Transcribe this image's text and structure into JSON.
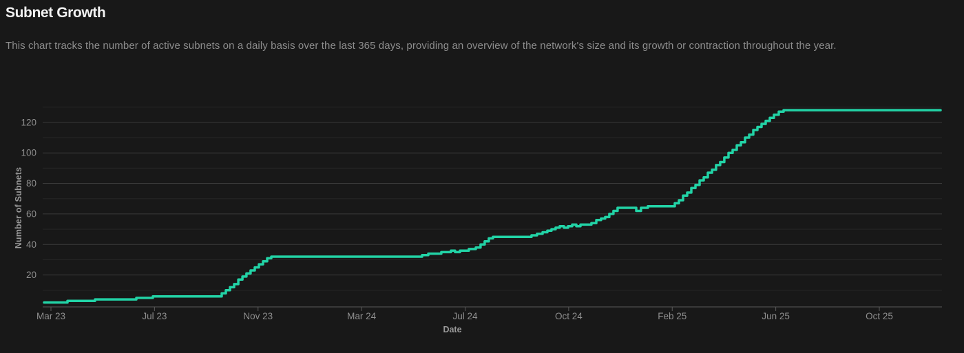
{
  "header": {
    "title": "Subnet Growth",
    "subtitle": "This chart tracks the number of active subnets on a daily basis over the last 365 days, providing an overview of the network's size and its growth or contraction throughout the year."
  },
  "chart_data": {
    "type": "line",
    "title": "Subnet Growth",
    "xlabel": "Date",
    "ylabel": "Number of Subnets",
    "interpolation": "step-after",
    "x_tick_labels": [
      "Mar 23",
      "Jul 23",
      "Nov 23",
      "Mar 24",
      "Jul 24",
      "Oct 24",
      "Feb 25",
      "Jun 25",
      "Oct 25"
    ],
    "y_tick_labels": [
      20,
      40,
      60,
      80,
      100,
      120
    ],
    "y_gridline_step": 10,
    "ylim": [
      0,
      140
    ],
    "grid": true,
    "legend": false,
    "colors": {
      "line": "#22d3a6",
      "background": "#181818",
      "grid_major": "#3a3a3a",
      "grid_minor": "#262626",
      "axis": "#5a5a5a",
      "tick_label": "#8f8f8f"
    },
    "series": [
      {
        "name": "Active Subnets",
        "summary": "Starts near 2 subnets in Feb 2023, steps up to 6 by Jul 2023, climbs steeply in Oct-Nov 2023 to 32, holds 32 until May 2024, rises in stairs to 45 by Aug 2024, to 53 by Oct 2024, to 64-65 by Dec 2024, then climbs steadily Feb-Jun 2025 to 128 and stays flat at 128 through the end.",
        "points": [
          [
            0.0015,
            2
          ],
          [
            0.0276,
            3
          ],
          [
            0.0582,
            4
          ],
          [
            0.1041,
            5
          ],
          [
            0.1225,
            6
          ],
          [
            0.196,
            6
          ],
          [
            0.1991,
            8
          ],
          [
            0.2037,
            10
          ],
          [
            0.2083,
            12
          ],
          [
            0.2129,
            14
          ],
          [
            0.2175,
            17
          ],
          [
            0.2221,
            19
          ],
          [
            0.2266,
            21
          ],
          [
            0.2312,
            23
          ],
          [
            0.2358,
            25
          ],
          [
            0.2404,
            27
          ],
          [
            0.245,
            29
          ],
          [
            0.2496,
            31
          ],
          [
            0.2542,
            32
          ],
          [
            0.4165,
            32
          ],
          [
            0.4219,
            33
          ],
          [
            0.4288,
            34
          ],
          [
            0.4433,
            35
          ],
          [
            0.454,
            36
          ],
          [
            0.4586,
            35
          ],
          [
            0.464,
            36
          ],
          [
            0.4739,
            37
          ],
          [
            0.4816,
            38
          ],
          [
            0.4869,
            40
          ],
          [
            0.4915,
            42
          ],
          [
            0.4961,
            44
          ],
          [
            0.5007,
            45
          ],
          [
            0.5382,
            45
          ],
          [
            0.5436,
            46
          ],
          [
            0.5497,
            47
          ],
          [
            0.5559,
            48
          ],
          [
            0.5612,
            49
          ],
          [
            0.5658,
            50
          ],
          [
            0.5704,
            51
          ],
          [
            0.575,
            52
          ],
          [
            0.5796,
            51
          ],
          [
            0.5842,
            52
          ],
          [
            0.5888,
            53
          ],
          [
            0.5934,
            52
          ],
          [
            0.598,
            53
          ],
          [
            0.6056,
            53
          ],
          [
            0.6102,
            54
          ],
          [
            0.6156,
            56
          ],
          [
            0.6209,
            57
          ],
          [
            0.6255,
            58
          ],
          [
            0.6301,
            60
          ],
          [
            0.6347,
            62
          ],
          [
            0.6393,
            64
          ],
          [
            0.6569,
            64
          ],
          [
            0.66,
            62
          ],
          [
            0.6653,
            64
          ],
          [
            0.673,
            65
          ],
          [
            0.699,
            65
          ],
          [
            0.7029,
            67
          ],
          [
            0.7075,
            69
          ],
          [
            0.7121,
            72
          ],
          [
            0.7167,
            74
          ],
          [
            0.7213,
            77
          ],
          [
            0.7259,
            79
          ],
          [
            0.7305,
            82
          ],
          [
            0.7351,
            84
          ],
          [
            0.7397,
            87
          ],
          [
            0.7443,
            89
          ],
          [
            0.7488,
            92
          ],
          [
            0.7534,
            94
          ],
          [
            0.758,
            97
          ],
          [
            0.7626,
            100
          ],
          [
            0.7672,
            102
          ],
          [
            0.7718,
            105
          ],
          [
            0.7764,
            107
          ],
          [
            0.781,
            110
          ],
          [
            0.7856,
            112
          ],
          [
            0.7902,
            115
          ],
          [
            0.7948,
            117
          ],
          [
            0.7994,
            119
          ],
          [
            0.804,
            121
          ],
          [
            0.8086,
            123
          ],
          [
            0.8132,
            125
          ],
          [
            0.8185,
            127
          ],
          [
            0.8239,
            128
          ],
          [
            0.9985,
            128
          ]
        ]
      }
    ]
  }
}
